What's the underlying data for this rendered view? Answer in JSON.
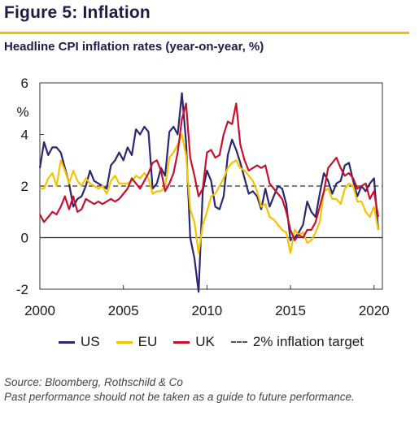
{
  "figure": {
    "title": "Figure 5: Inflation",
    "subtitle": "Headline CPI inflation rates (year-on-year, %)",
    "source_line1": "Source: Bloomberg, Rothschild & Co",
    "source_line2": "Past performance should not be taken as a guide to future performance."
  },
  "colors": {
    "accent": "#f2c200",
    "title": "#1f1a4a"
  },
  "chart_data": {
    "type": "line",
    "title": "Headline CPI inflation rates (year-on-year, %)",
    "ylabel": "%",
    "xlim": [
      2000,
      2020.5
    ],
    "ylim": [
      -2,
      6
    ],
    "x_ticks": [
      2000,
      2005,
      2010,
      2015,
      2020
    ],
    "y_ticks": [
      -2,
      0,
      2,
      4,
      6
    ],
    "reference_line": {
      "name": "2% inflation target",
      "value": 2,
      "style": "dashed",
      "color": "#555555"
    },
    "legend_position": "bottom",
    "series": [
      {
        "name": "US",
        "color": "#2b2870",
        "x": [
          2000,
          2000.25,
          2000.5,
          2000.75,
          2001,
          2001.25,
          2001.5,
          2001.75,
          2002,
          2002.25,
          2002.5,
          2002.75,
          2003,
          2003.25,
          2003.5,
          2003.75,
          2004,
          2004.25,
          2004.5,
          2004.75,
          2005,
          2005.25,
          2005.5,
          2005.75,
          2006,
          2006.25,
          2006.5,
          2006.75,
          2007,
          2007.25,
          2007.5,
          2007.75,
          2008,
          2008.25,
          2008.5,
          2008.75,
          2009,
          2009.25,
          2009.5,
          2009.75,
          2010,
          2010.25,
          2010.5,
          2010.75,
          2011,
          2011.25,
          2011.5,
          2011.75,
          2012,
          2012.25,
          2012.5,
          2012.75,
          2013,
          2013.25,
          2013.5,
          2013.75,
          2014,
          2014.25,
          2014.5,
          2014.75,
          2015,
          2015.25,
          2015.5,
          2015.75,
          2016,
          2016.25,
          2016.5,
          2016.75,
          2017,
          2017.25,
          2017.5,
          2017.75,
          2018,
          2018.25,
          2018.5,
          2018.75,
          2019,
          2019.25,
          2019.5,
          2019.75,
          2020,
          2020.25
        ],
        "values": [
          2.7,
          3.7,
          3.2,
          3.5,
          3.5,
          3.3,
          2.7,
          2.1,
          1.2,
          1.5,
          1.6,
          2.0,
          2.6,
          2.2,
          2.1,
          2.0,
          1.9,
          2.8,
          3.0,
          3.3,
          3.0,
          3.5,
          3.2,
          4.2,
          4.0,
          4.3,
          4.1,
          1.9,
          2.1,
          2.7,
          2.4,
          4.1,
          4.3,
          4.0,
          5.6,
          3.7,
          0.0,
          -0.8,
          -2.1,
          1.8,
          2.6,
          2.2,
          1.2,
          1.1,
          1.6,
          3.2,
          3.8,
          3.4,
          2.9,
          2.3,
          1.7,
          1.8,
          1.6,
          1.1,
          1.9,
          1.2,
          1.6,
          2.0,
          1.9,
          1.3,
          -0.1,
          0.0,
          0.2,
          0.5,
          1.4,
          1.0,
          0.8,
          1.7,
          2.5,
          2.2,
          1.7,
          2.1,
          2.2,
          2.8,
          2.9,
          2.2,
          1.6,
          2.0,
          1.8,
          2.1,
          2.3,
          0.3
        ]
      },
      {
        "name": "EU",
        "color": "#f5c400",
        "x": [
          2000,
          2000.25,
          2000.5,
          2000.75,
          2001,
          2001.25,
          2001.5,
          2001.75,
          2002,
          2002.25,
          2002.5,
          2002.75,
          2003,
          2003.25,
          2003.5,
          2003.75,
          2004,
          2004.25,
          2004.5,
          2004.75,
          2005,
          2005.25,
          2005.5,
          2005.75,
          2006,
          2006.25,
          2006.5,
          2006.75,
          2007,
          2007.25,
          2007.5,
          2007.75,
          2008,
          2008.25,
          2008.5,
          2008.75,
          2009,
          2009.25,
          2009.5,
          2009.75,
          2010,
          2010.25,
          2010.5,
          2010.75,
          2011,
          2011.25,
          2011.5,
          2011.75,
          2012,
          2012.25,
          2012.5,
          2012.75,
          2013,
          2013.25,
          2013.5,
          2013.75,
          2014,
          2014.25,
          2014.5,
          2014.75,
          2015,
          2015.25,
          2015.5,
          2015.75,
          2016,
          2016.25,
          2016.5,
          2016.75,
          2017,
          2017.25,
          2017.5,
          2017.75,
          2018,
          2018.25,
          2018.5,
          2018.75,
          2019,
          2019.25,
          2019.5,
          2019.75,
          2020,
          2020.25
        ],
        "values": [
          1.9,
          1.9,
          2.3,
          2.5,
          2.0,
          3.0,
          2.6,
          2.1,
          2.6,
          2.2,
          2.0,
          2.3,
          2.1,
          2.0,
          1.9,
          2.0,
          1.7,
          2.2,
          2.4,
          2.1,
          2.1,
          2.1,
          2.2,
          2.4,
          2.3,
          2.5,
          2.3,
          1.7,
          1.8,
          1.8,
          2.0,
          3.1,
          3.3,
          3.6,
          4.0,
          3.2,
          1.1,
          0.6,
          -0.6,
          0.5,
          1.0,
          1.6,
          1.7,
          2.0,
          2.3,
          2.7,
          2.9,
          3.0,
          2.7,
          2.6,
          2.4,
          2.2,
          1.8,
          1.2,
          1.3,
          0.8,
          0.7,
          0.5,
          0.3,
          0.2,
          -0.6,
          0.3,
          0.1,
          0.2,
          -0.2,
          -0.1,
          0.2,
          0.6,
          1.8,
          1.9,
          1.5,
          1.5,
          1.3,
          1.9,
          2.1,
          2.0,
          1.4,
          1.4,
          1.0,
          0.8,
          1.2,
          0.3
        ]
      },
      {
        "name": "UK",
        "color": "#c8102e",
        "x": [
          2000,
          2000.25,
          2000.5,
          2000.75,
          2001,
          2001.25,
          2001.5,
          2001.75,
          2002,
          2002.25,
          2002.5,
          2002.75,
          2003,
          2003.25,
          2003.5,
          2003.75,
          2004,
          2004.25,
          2004.5,
          2004.75,
          2005,
          2005.25,
          2005.5,
          2005.75,
          2006,
          2006.25,
          2006.5,
          2006.75,
          2007,
          2007.25,
          2007.5,
          2007.75,
          2008,
          2008.25,
          2008.5,
          2008.75,
          2009,
          2009.25,
          2009.5,
          2009.75,
          2010,
          2010.25,
          2010.5,
          2010.75,
          2011,
          2011.25,
          2011.5,
          2011.75,
          2012,
          2012.25,
          2012.5,
          2012.75,
          2013,
          2013.25,
          2013.5,
          2013.75,
          2014,
          2014.25,
          2014.5,
          2014.75,
          2015,
          2015.25,
          2015.5,
          2015.75,
          2016,
          2016.25,
          2016.5,
          2016.75,
          2017,
          2017.25,
          2017.5,
          2017.75,
          2018,
          2018.25,
          2018.5,
          2018.75,
          2019,
          2019.25,
          2019.5,
          2019.75,
          2020,
          2020.25
        ],
        "values": [
          0.9,
          0.6,
          0.8,
          1.0,
          0.9,
          1.2,
          1.6,
          1.1,
          1.6,
          1.0,
          1.1,
          1.5,
          1.4,
          1.3,
          1.4,
          1.3,
          1.4,
          1.5,
          1.4,
          1.5,
          1.7,
          1.9,
          2.3,
          2.1,
          1.9,
          2.2,
          2.5,
          2.9,
          3.0,
          2.6,
          1.8,
          2.1,
          2.5,
          3.3,
          4.6,
          5.2,
          3.1,
          2.4,
          1.6,
          1.9,
          3.3,
          3.4,
          3.1,
          3.2,
          4.0,
          4.5,
          4.4,
          5.2,
          3.6,
          3.0,
          2.6,
          2.7,
          2.8,
          2.7,
          2.8,
          2.1,
          1.9,
          1.7,
          1.5,
          1.0,
          0.3,
          -0.1,
          0.1,
          0.0,
          0.3,
          0.3,
          0.6,
          1.2,
          1.8,
          2.7,
          2.9,
          3.1,
          2.7,
          2.4,
          2.5,
          2.3,
          1.9,
          2.0,
          2.1,
          1.5,
          1.8,
          0.8
        ]
      }
    ]
  }
}
